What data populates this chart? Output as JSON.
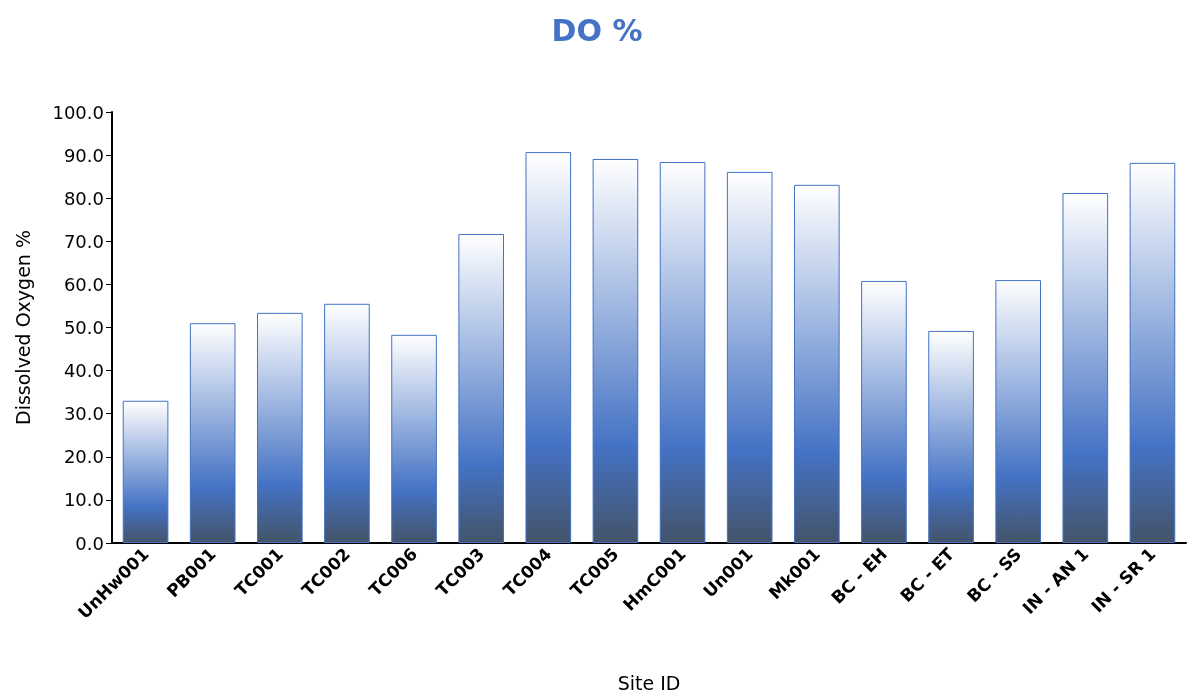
{
  "chart_data": {
    "type": "bar",
    "title": "DO %",
    "xlabel": "Site ID",
    "ylabel": "Dissolved Oxygen %",
    "categories": [
      "UnHw001",
      "PB001",
      "TC001",
      "TC002",
      "TC006",
      "TC003",
      "TC004",
      "TC005",
      "HmC001",
      "Un001",
      "Mk001",
      "BC - EH",
      "BC - ET",
      "BC - SS",
      "IN - AN 1",
      "IN - SR 1"
    ],
    "values": [
      33.0,
      51.0,
      53.4,
      55.5,
      48.3,
      71.7,
      90.7,
      89.1,
      88.4,
      86.1,
      83.1,
      60.8,
      49.2,
      61.0,
      81.2,
      88.2
    ],
    "color": "#4472c4",
    "ylim": [
      0,
      100
    ],
    "yticks": [
      {
        "value": 0,
        "label": "0.0"
      },
      {
        "value": 10,
        "label": "10.0"
      },
      {
        "value": 20,
        "label": "20.0"
      },
      {
        "value": 30,
        "label": "30.0"
      },
      {
        "value": 40,
        "label": "40.0"
      },
      {
        "value": 50,
        "label": "50.0"
      },
      {
        "value": 60,
        "label": "60.0"
      },
      {
        "value": 70,
        "label": "70.0"
      },
      {
        "value": 80,
        "label": "80.0"
      },
      {
        "value": 90,
        "label": "90.0"
      },
      {
        "value": 100,
        "label": "100.0"
      }
    ],
    "grid": false
  }
}
